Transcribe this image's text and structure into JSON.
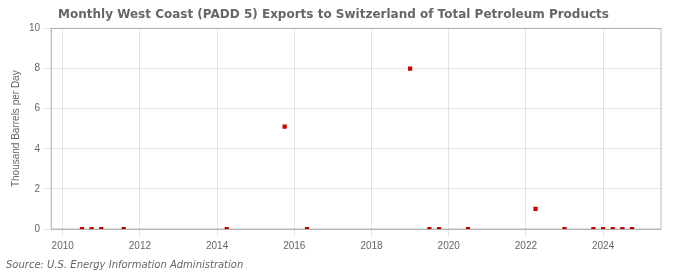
{
  "chart_data": {
    "type": "scatter",
    "title": "Monthly West Coast (PADD 5) Exports to Switzerland of Total Petroleum Products",
    "ylabel": "Thousand Barrels per Day",
    "annotation": "Source: U.S. Energy Information Administration",
    "x": [
      2010.5,
      2010.75,
      2011.0,
      2011.58,
      2014.25,
      2015.75,
      2016.33,
      2019.0,
      2019.5,
      2019.75,
      2020.5,
      2022.25,
      2023.0,
      2023.75,
      2024.0,
      2024.25,
      2024.5,
      2024.75
    ],
    "values": [
      0.0,
      0.0,
      0.0,
      0.0,
      0.0,
      5.1,
      0.0,
      8.0,
      0.0,
      0.0,
      0.0,
      1.0,
      0.0,
      0.0,
      0.0,
      0.0,
      0.0,
      0.0
    ],
    "color": "#cc0000",
    "marker": "square",
    "xlim": [
      2009.7,
      2025.5
    ],
    "ylim": [
      0,
      10
    ],
    "xticks": [
      2010,
      2012,
      2014,
      2016,
      2018,
      2020,
      2022,
      2024
    ],
    "yticks": [
      0,
      2,
      4,
      6,
      8,
      10
    ],
    "grid": true
  }
}
